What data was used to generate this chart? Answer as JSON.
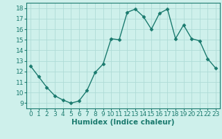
{
  "x": [
    0,
    1,
    2,
    3,
    4,
    5,
    6,
    7,
    8,
    9,
    10,
    11,
    12,
    13,
    14,
    15,
    16,
    17,
    18,
    19,
    20,
    21,
    22,
    23
  ],
  "y": [
    12.5,
    11.5,
    10.5,
    9.7,
    9.3,
    9.0,
    9.2,
    10.2,
    11.9,
    12.7,
    15.1,
    15.0,
    17.6,
    17.9,
    17.2,
    16.0,
    17.5,
    17.9,
    15.1,
    16.4,
    15.1,
    14.9,
    13.2,
    12.3
  ],
  "line_color": "#1a7a6e",
  "marker_color": "#1a7a6e",
  "bg_color": "#cef0eb",
  "grid_color": "#aedbd6",
  "xlabel": "Humidex (Indice chaleur)",
  "xlim": [
    -0.5,
    23.5
  ],
  "ylim": [
    8.5,
    18.5
  ],
  "yticks": [
    9,
    10,
    11,
    12,
    13,
    14,
    15,
    16,
    17,
    18
  ],
  "xticks": [
    0,
    1,
    2,
    3,
    4,
    5,
    6,
    7,
    8,
    9,
    10,
    11,
    12,
    13,
    14,
    15,
    16,
    17,
    18,
    19,
    20,
    21,
    22,
    23
  ],
  "tick_label_fontsize": 6.5,
  "xlabel_fontsize": 7.5,
  "marker_size": 2.5,
  "line_width": 1.0
}
